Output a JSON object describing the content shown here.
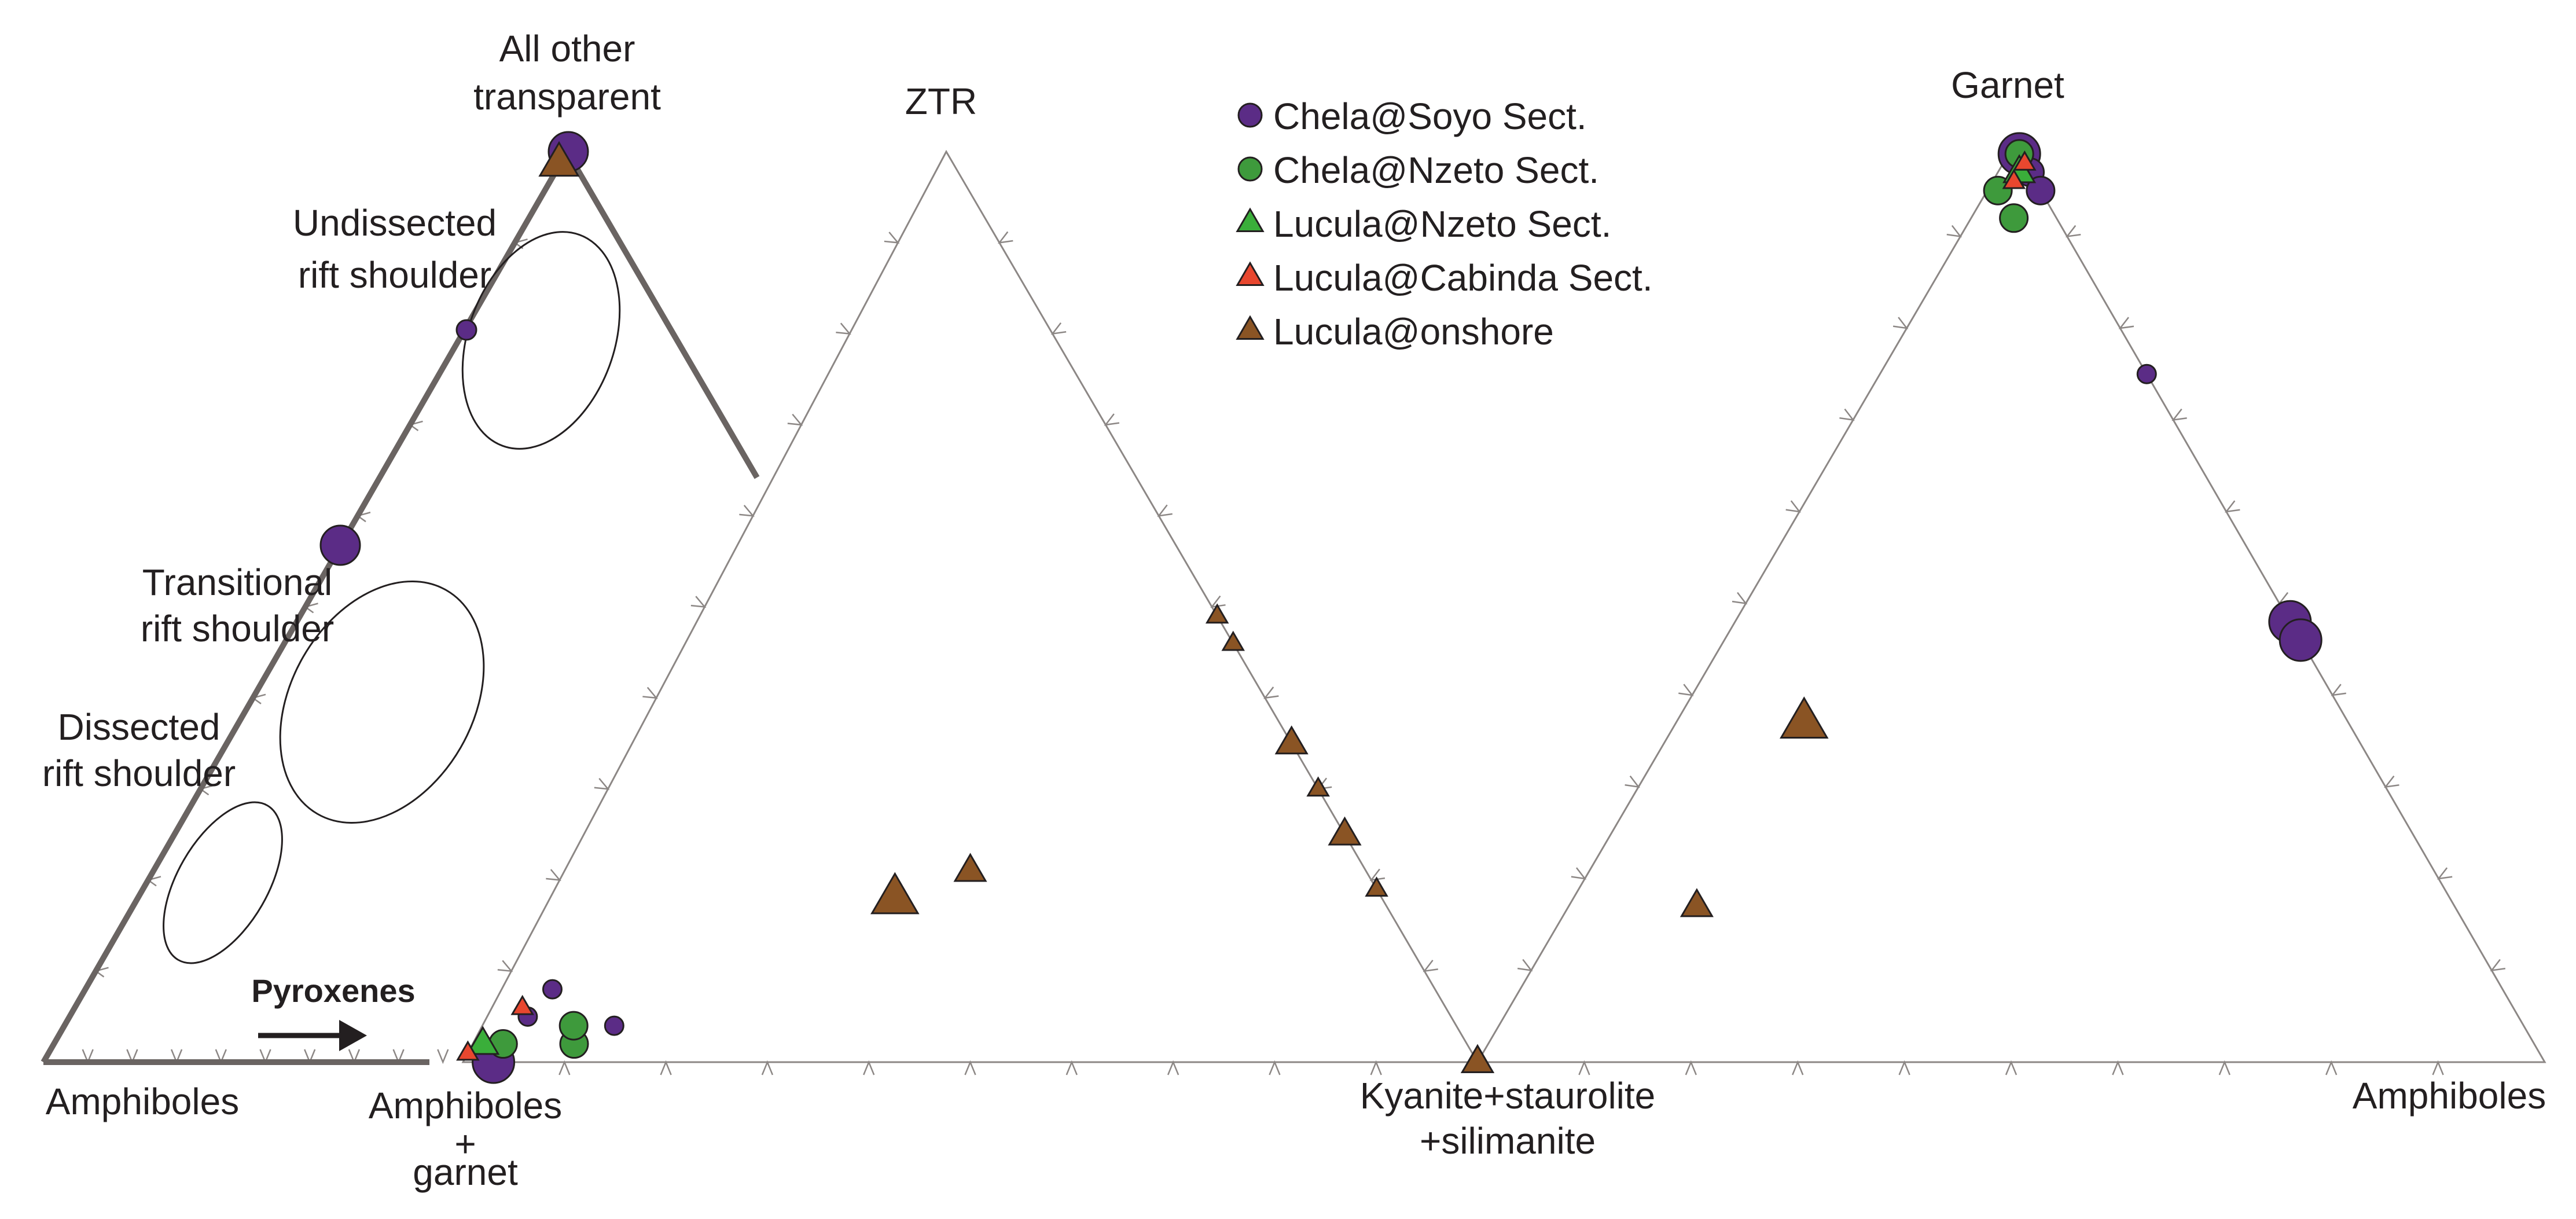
{
  "colors": {
    "chela_soyo": "#5b2c86",
    "chela_nzeto": "#3e9a3c",
    "lucula_nzeto": "#3aae3a",
    "lucula_cabinda": "#e8472f",
    "lucula_onshore": "#8a5424",
    "triangle_axis": "#8c8785",
    "overlay_triangle": "#6a6462",
    "field_outline": "#231f20"
  },
  "chart_data": [
    {
      "type": "scatter",
      "subtype": "ternary",
      "vertices": {
        "top": "All other transparent",
        "left": "Amphiboles",
        "right": "Amphiboles + garnet"
      },
      "annotations": [
        "Undissected rift shoulder",
        "Transitional rift shoulder",
        "Dissected rift shoulder",
        "Pyroxenes"
      ],
      "fields": [
        "Undissected rift shoulder",
        "Transitional rift shoulder",
        "Dissected rift shoulder"
      ]
    },
    {
      "type": "scatter",
      "subtype": "ternary",
      "vertices": {
        "top": "ZTR",
        "left": "Amphiboles + garnet",
        "right": "Kyanite+staurolite +silimanite"
      },
      "series": [
        {
          "name": "Chela@Soyo Sect.",
          "marker": "circle",
          "points": [
            {
              "a": 0.0,
              "b": 0.97,
              "c": 0.03,
              "size": "large"
            },
            {
              "a": 0.02,
              "b": 0.95,
              "c": 0.03,
              "size": "small"
            },
            {
              "a": 0.05,
              "b": 0.91,
              "c": 0.04,
              "size": "small"
            },
            {
              "a": 0.08,
              "b": 0.87,
              "c": 0.05,
              "size": "small"
            },
            {
              "a": 0.04,
              "b": 0.83,
              "c": 0.13,
              "size": "small"
            }
          ]
        },
        {
          "name": "Chela@Nzeto Sect.",
          "marker": "circle",
          "points": [
            {
              "a": 0.02,
              "b": 0.88,
              "c": 0.1,
              "size": "medium"
            },
            {
              "a": 0.04,
              "b": 0.87,
              "c": 0.09,
              "size": "medium"
            },
            {
              "a": 0.02,
              "b": 0.95,
              "c": 0.03,
              "size": "medium"
            }
          ]
        },
        {
          "name": "Lucula@Nzeto Sect.",
          "marker": "triangle",
          "points": [
            {
              "a": 0.02,
              "b": 0.97,
              "c": 0.01,
              "size": "medium"
            }
          ]
        },
        {
          "name": "Lucula@Cabinda Sect.",
          "marker": "triangle",
          "points": [
            {
              "a": 0.06,
              "b": 0.91,
              "c": 0.03,
              "size": "small"
            },
            {
              "a": 0.01,
              "b": 0.99,
              "c": 0.0,
              "size": "small"
            }
          ]
        },
        {
          "name": "Lucula@onshore",
          "marker": "triangle",
          "points": [
            {
              "a": 0.18,
              "b": 0.48,
              "c": 0.34,
              "size": "large"
            },
            {
              "a": 0.21,
              "b": 0.39,
              "c": 0.4,
              "size": "medium"
            },
            {
              "a": 0.49,
              "b": 0.0,
              "c": 0.51,
              "size": "small"
            },
            {
              "a": 0.46,
              "b": 0.0,
              "c": 0.54,
              "size": "small"
            },
            {
              "a": 0.35,
              "b": 0.0,
              "c": 0.65,
              "size": "medium"
            },
            {
              "a": 0.3,
              "b": 0.0,
              "c": 0.7,
              "size": "small"
            },
            {
              "a": 0.25,
              "b": 0.0,
              "c": 0.75,
              "size": "medium"
            },
            {
              "a": 0.19,
              "b": 0.0,
              "c": 0.81,
              "size": "small"
            },
            {
              "a": 0.0,
              "b": 0.0,
              "c": 1.0,
              "size": "medium"
            }
          ]
        }
      ]
    },
    {
      "type": "scatter",
      "subtype": "ternary",
      "vertices": {
        "top": "Garnet",
        "left": "Kyanite+staurolite +silimanite",
        "right": "Amphiboles"
      },
      "series": [
        {
          "name": "Chela@Soyo Sect.",
          "marker": "circle",
          "points": [
            {
              "a": 0.99,
              "b": 0.0,
              "c": 0.01,
              "size": "large"
            },
            {
              "a": 0.97,
              "b": 0.0,
              "c": 0.03,
              "size": "medium"
            },
            {
              "a": 0.95,
              "b": 0.0,
              "c": 0.05,
              "size": "medium"
            },
            {
              "a": 0.75,
              "b": 0.0,
              "c": 0.25,
              "size": "small"
            },
            {
              "a": 0.48,
              "b": 0.0,
              "c": 0.52,
              "size": "large"
            },
            {
              "a": 0.46,
              "b": 0.0,
              "c": 0.54,
              "size": "large"
            }
          ]
        },
        {
          "name": "Chela@Nzeto Sect.",
          "marker": "circle",
          "points": [
            {
              "a": 0.99,
              "b": 0.0,
              "c": 0.01,
              "size": "medium"
            },
            {
              "a": 0.95,
              "b": 0.04,
              "c": 0.01,
              "size": "medium"
            },
            {
              "a": 0.92,
              "b": 0.04,
              "c": 0.04,
              "size": "medium"
            }
          ]
        },
        {
          "name": "Lucula@Nzeto Sect.",
          "marker": "triangle",
          "points": [
            {
              "a": 0.97,
              "b": 0.01,
              "c": 0.02,
              "size": "medium"
            }
          ]
        },
        {
          "name": "Lucula@Cabinda Sect.",
          "marker": "triangle",
          "points": [
            {
              "a": 0.98,
              "b": 0.0,
              "c": 0.02,
              "size": "small"
            },
            {
              "a": 0.96,
              "b": 0.02,
              "c": 0.02,
              "size": "small"
            }
          ]
        },
        {
          "name": "Lucula@onshore",
          "marker": "triangle",
          "points": [
            {
              "a": 0.37,
              "b": 0.51,
              "c": 0.12,
              "size": "large"
            },
            {
              "a": 0.17,
              "b": 0.71,
              "c": 0.12,
              "size": "medium"
            },
            {
              "a": 0.0,
              "b": 1.0,
              "c": 0.0,
              "size": "medium"
            }
          ]
        }
      ]
    }
  ],
  "labels": {
    "all_other_line1": "All other",
    "all_other_line2": "transparent",
    "ztr": "ZTR",
    "garnet": "Garnet",
    "amphiboles_left": "Amphiboles",
    "amph_garnet_line1": "Amphiboles",
    "amph_garnet_line2": "+",
    "amph_garnet_line3": "garnet",
    "kyanite_line1": "Kyanite+staurolite",
    "kyanite_line2": "+silimanite",
    "amphiboles_right": "Amphiboles",
    "undissected_line1": "Undissected",
    "undissected_line2": "rift shoulder",
    "transitional_line1": "Transitional",
    "transitional_line2": "rift shoulder",
    "dissected_line1": "Dissected",
    "dissected_line2": "rift shoulder",
    "pyroxenes": "Pyroxenes"
  },
  "legend": {
    "items": [
      {
        "label": "Chela@Soyo Sect.",
        "marker": "circle",
        "color_key": "chela_soyo"
      },
      {
        "label": "Chela@Nzeto Sect.",
        "marker": "circle",
        "color_key": "chela_nzeto"
      },
      {
        "label": "Lucula@Nzeto Sect.",
        "marker": "triangle",
        "color_key": "lucula_nzeto"
      },
      {
        "label": "Lucula@Cabinda Sect.",
        "marker": "triangle",
        "color_key": "lucula_cabinda"
      },
      {
        "label": "Lucula@onshore",
        "marker": "triangle",
        "color_key": "lucula_onshore"
      }
    ]
  },
  "icons": {
    "pyroxenes_arrow": "arrow-right-icon"
  }
}
